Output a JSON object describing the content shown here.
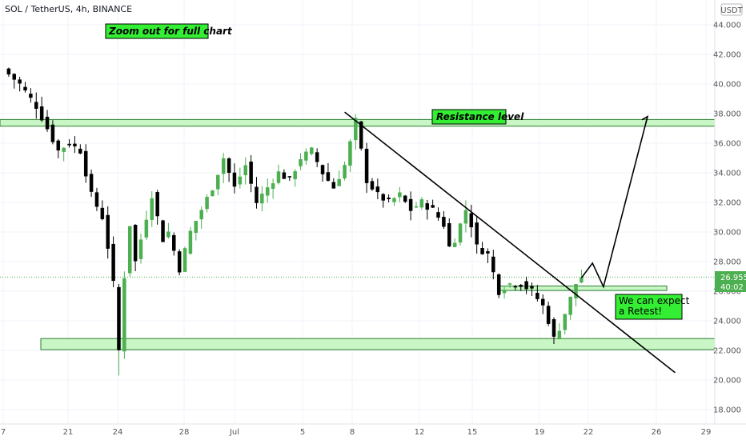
{
  "header": {
    "symbol": "SOL / TetherUS, 4h, BINANCE"
  },
  "currency_label": "USDT",
  "price_tag": {
    "price": "26.955",
    "countdown": "40:02"
  },
  "annotations": {
    "zoom_note": "Zoom out for full chart",
    "resistance": "Resistance level",
    "retest_line1": "We can expect",
    "retest_line2": "a Retest!"
  },
  "colors": {
    "up": "#26a69a",
    "up_fill": "#4caf50",
    "down": "#000000",
    "zone_fill": "#c8f7c5",
    "zone_stroke": "#2e7d32",
    "note_bg": "#33ee33",
    "price_tag": "#4caf50"
  },
  "chart_data": {
    "type": "candlestick",
    "title": "SOL / TetherUS, 4h, BINANCE",
    "x_ticks": [
      "7",
      "21",
      "24",
      "28",
      "Jul",
      "5",
      "8",
      "12",
      "15",
      "19",
      "22",
      "26",
      "29"
    ],
    "y_ticks": [
      "44.000",
      "42.000",
      "40.000",
      "38.000",
      "36.000",
      "34.000",
      "32.000",
      "30.000",
      "28.000",
      "26.000",
      "24.000",
      "22.000",
      "20.000",
      "18.000"
    ],
    "ylim": [
      17.3,
      45.2
    ],
    "current_price": 26.955,
    "close_path": [
      [
        0,
        41.0
      ],
      [
        3,
        40.0
      ],
      [
        6,
        38.5
      ],
      [
        8,
        37.0
      ],
      [
        10,
        35.5
      ],
      [
        12,
        36.0
      ],
      [
        14,
        35.5
      ],
      [
        16,
        32.5
      ],
      [
        18,
        31.0
      ],
      [
        19,
        29.0
      ],
      [
        20,
        26.5
      ],
      [
        21,
        22.0
      ],
      [
        22,
        27.0
      ],
      [
        23,
        30.5
      ],
      [
        24,
        28.0
      ],
      [
        26,
        31.0
      ],
      [
        27,
        32.5
      ],
      [
        28,
        31.0
      ],
      [
        29,
        29.5
      ],
      [
        30,
        30.0
      ],
      [
        32,
        27.5
      ],
      [
        34,
        30.0
      ],
      [
        36,
        31.5
      ],
      [
        38,
        33.0
      ],
      [
        40,
        35.0
      ],
      [
        42,
        33.0
      ],
      [
        44,
        34.5
      ],
      [
        46,
        32.0
      ],
      [
        48,
        33.0
      ],
      [
        50,
        34.0
      ],
      [
        52,
        33.5
      ],
      [
        54,
        35.0
      ],
      [
        56,
        35.5
      ],
      [
        58,
        34.0
      ],
      [
        60,
        33.0
      ],
      [
        62,
        34.5
      ],
      [
        63,
        36.0
      ],
      [
        64,
        37.5
      ],
      [
        65,
        35.5
      ],
      [
        66,
        33.5
      ],
      [
        68,
        32.5
      ],
      [
        70,
        32.0
      ],
      [
        72,
        32.5
      ],
      [
        74,
        31.5
      ],
      [
        76,
        32.0
      ],
      [
        78,
        31.5
      ],
      [
        80,
        30.5
      ],
      [
        81,
        29.0
      ],
      [
        82,
        29.5
      ],
      [
        84,
        31.5
      ],
      [
        85,
        30.5
      ],
      [
        86,
        29.0
      ],
      [
        88,
        28.5
      ],
      [
        90,
        26.0
      ],
      [
        92,
        26.5
      ],
      [
        94,
        26.5
      ],
      [
        96,
        26.0
      ],
      [
        98,
        25.0
      ],
      [
        99,
        24.0
      ],
      [
        100,
        22.8
      ],
      [
        101,
        23.5
      ],
      [
        102,
        24.5
      ],
      [
        103,
        25.5
      ],
      [
        104,
        26.5
      ],
      [
        105,
        26.955
      ]
    ],
    "lines": [
      {
        "name": "trendline",
        "from": [
          62,
          38.1
        ],
        "to": [
          122,
          20.5
        ]
      },
      {
        "name": "projection",
        "from": [
          105,
          26.9
        ],
        "via": [
          [
            107,
            27.9
          ],
          [
            109,
            26.3
          ]
        ],
        "to": [
          117,
          37.8
        ]
      }
    ],
    "zones": [
      {
        "name": "Resistance level",
        "y_from": 37.15,
        "y_to": 37.6
      },
      {
        "name": "support",
        "y_from": 22.05,
        "y_to": 22.8
      },
      {
        "name": "retest",
        "y_from": 26.05,
        "y_to": 26.35
      }
    ],
    "grid": true,
    "legend": "none"
  }
}
